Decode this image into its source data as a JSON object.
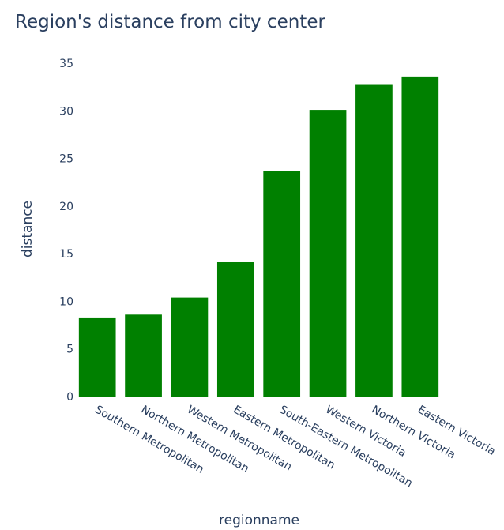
{
  "chart_data": {
    "type": "bar",
    "title": "Region's distance from city center",
    "xlabel": "regionname",
    "ylabel": "distance",
    "categories": [
      "Southern Metropolitan",
      "Northern Metropolitan",
      "Western Metropolitan",
      "Eastern Metropolitan",
      "South-Eastern Metropolitan",
      "Western Victoria",
      "Northern Victoria",
      "Eastern Victoria"
    ],
    "values": [
      8.3,
      8.6,
      10.4,
      14.1,
      23.7,
      30.1,
      32.8,
      33.6
    ],
    "ylim": [
      0,
      35
    ],
    "yticks": [
      "0",
      "5",
      "10",
      "15",
      "20",
      "25",
      "30",
      "35"
    ],
    "grid": false,
    "bar_color": "#008000",
    "text_color": "#2a3f5f"
  }
}
